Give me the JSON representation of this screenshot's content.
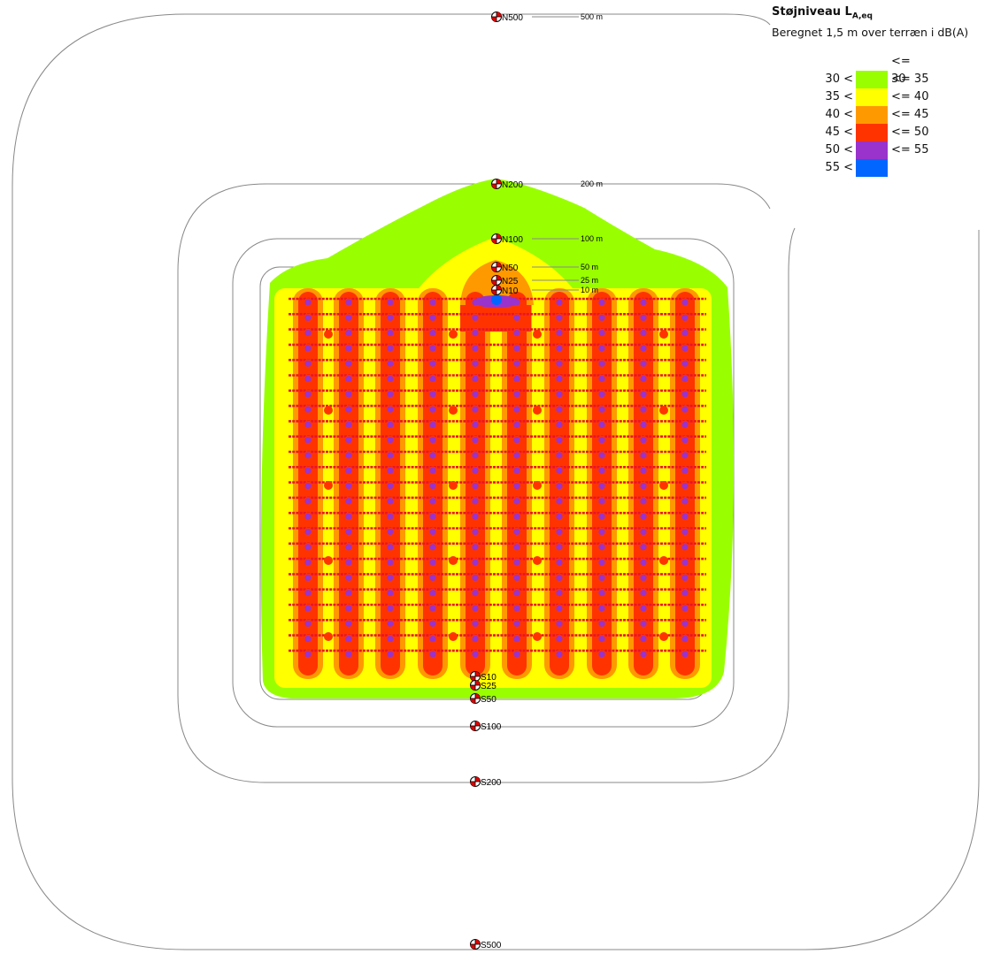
{
  "legend": {
    "title": "Støjniveau L",
    "title_sub": "A,eq",
    "subtitle": "Beregnet 1,5 m over terræn i dB(A)",
    "header": "<= 30",
    "rows": [
      {
        "low": "30 <",
        "high": "<= 35",
        "color": "#99ff00"
      },
      {
        "low": "35 <",
        "high": "<= 40",
        "color": "#ffff00"
      },
      {
        "low": "40 <",
        "high": "<= 45",
        "color": "#ff9900"
      },
      {
        "low": "45 <",
        "high": "<= 50",
        "color": "#ff3300"
      },
      {
        "low": "50 <",
        "high": "<= 55",
        "color": "#9933cc"
      },
      {
        "low": "55 <",
        "high": "",
        "color": "#0066ff"
      }
    ]
  },
  "receivers_north": [
    {
      "id": "N500",
      "distance": "500 m"
    },
    {
      "id": "N200",
      "distance": "200 m"
    },
    {
      "id": "N100",
      "distance": "100 m"
    },
    {
      "id": "N50",
      "distance": "50 m"
    },
    {
      "id": "N25",
      "distance": "25 m"
    },
    {
      "id": "N10",
      "distance": "10 m"
    }
  ],
  "receivers_south": [
    "S10",
    "S25",
    "S50",
    "S100",
    "S200",
    "S500"
  ],
  "colors": {
    "below_30": "#ffffff",
    "level_30_35": "#99ff00",
    "level_35_40": "#ffff00",
    "level_40_45": "#ff9900",
    "level_45_50": "#ff3300",
    "level_50_55": "#9933cc",
    "level_55_plus": "#0066ff",
    "distance_line": "#888888"
  }
}
